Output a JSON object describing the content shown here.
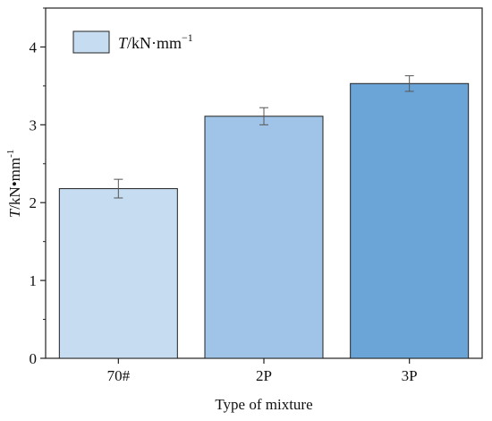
{
  "chart_data": {
    "type": "bar",
    "categories": [
      "70#",
      "2P",
      "3P"
    ],
    "series": [
      {
        "name": "T/kN·mm⁻¹",
        "values": [
          2.18,
          3.11,
          3.53
        ],
        "errors": [
          0.12,
          0.11,
          0.1
        ],
        "colors": [
          "#c6dcf0",
          "#9fc4e7",
          "#6ba5d7"
        ]
      }
    ],
    "xlabel": "Type of mixture",
    "ylabel": "T/kN•mm⁻¹",
    "ylim": [
      0,
      4.5
    ],
    "yticks": [
      "0",
      "1",
      "2",
      "3",
      "4"
    ],
    "legend": {
      "placement": "top-left",
      "label_italic": "T",
      "label_rest": "/kN·mm",
      "label_sup": "−1"
    },
    "ylabel_parts": {
      "italic": "T",
      "rest": "/kN•mm",
      "sup": "-1"
    },
    "grid": false,
    "bar_edge_color": "#222222",
    "error_bar_color": "#555555"
  }
}
